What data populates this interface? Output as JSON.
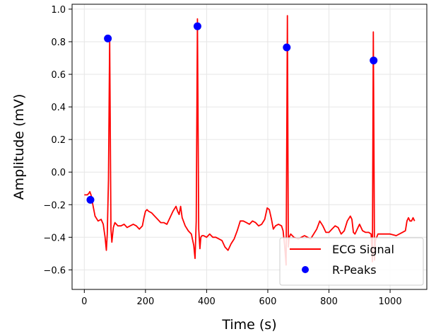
{
  "chart_data": {
    "type": "line",
    "xlabel": "Time (s)",
    "ylabel": "Amplitude (mV)",
    "xlim": [
      -40,
      1120
    ],
    "ylim": [
      -0.72,
      1.03
    ],
    "xticks": [
      0,
      200,
      400,
      600,
      800,
      1000
    ],
    "xtick_labels": [
      "0",
      "200",
      "400",
      "600",
      "800",
      "1000"
    ],
    "yticks": [
      -0.6,
      -0.4,
      -0.2,
      0.0,
      0.2,
      0.4,
      0.6,
      0.8,
      1.0
    ],
    "ytick_labels": [
      "−0.6",
      "−0.4",
      "−0.2",
      "0.0",
      "0.2",
      "0.4",
      "0.6",
      "0.8",
      "1.0"
    ],
    "grid": true,
    "legend_position": "lower-right",
    "colors": {
      "signal": "#ff0000",
      "peaks": "#0000ff"
    },
    "series": [
      {
        "name": "ECG Signal",
        "kind": "line",
        "x": [
          0,
          10,
          15,
          18,
          22,
          28,
          35,
          45,
          55,
          62,
          68,
          72,
          75,
          79,
          83,
          87,
          90,
          95,
          100,
          110,
          120,
          130,
          140,
          150,
          160,
          170,
          180,
          190,
          195,
          200,
          205,
          210,
          220,
          230,
          240,
          250,
          260,
          270,
          280,
          290,
          300,
          305,
          310,
          315,
          320,
          330,
          340,
          350,
          358,
          362,
          366,
          370,
          374,
          378,
          381,
          385,
          390,
          400,
          410,
          420,
          430,
          440,
          450,
          460,
          470,
          480,
          490,
          500,
          510,
          520,
          530,
          540,
          550,
          560,
          570,
          580,
          590,
          598,
          605,
          612,
          618,
          625,
          635,
          645,
          650,
          655,
          660,
          664,
          667,
          670,
          675,
          685,
          700,
          720,
          740,
          760,
          770,
          780,
          790,
          800,
          810,
          820,
          830,
          840,
          850,
          860,
          870,
          875,
          880,
          885,
          890,
          895,
          900,
          910,
          920,
          930,
          938,
          942,
          945,
          949,
          952,
          960,
          980,
          1000,
          1020,
          1040,
          1050,
          1055,
          1060,
          1065,
          1070,
          1075,
          1080
        ],
        "y": [
          -0.14,
          -0.14,
          -0.13,
          -0.12,
          -0.14,
          -0.2,
          -0.27,
          -0.3,
          -0.29,
          -0.32,
          -0.4,
          -0.48,
          -0.38,
          -0.05,
          0.82,
          -0.35,
          -0.43,
          -0.34,
          -0.31,
          -0.33,
          -0.33,
          -0.32,
          -0.34,
          -0.33,
          -0.32,
          -0.33,
          -0.35,
          -0.33,
          -0.28,
          -0.24,
          -0.23,
          -0.24,
          -0.25,
          -0.27,
          -0.29,
          -0.31,
          -0.31,
          -0.32,
          -0.28,
          -0.24,
          -0.21,
          -0.24,
          -0.26,
          -0.21,
          -0.28,
          -0.33,
          -0.36,
          -0.38,
          -0.45,
          -0.53,
          -0.3,
          0.94,
          -0.35,
          -0.47,
          -0.4,
          -0.39,
          -0.39,
          -0.4,
          -0.38,
          -0.4,
          -0.4,
          -0.41,
          -0.42,
          -0.46,
          -0.48,
          -0.44,
          -0.41,
          -0.36,
          -0.3,
          -0.3,
          -0.31,
          -0.32,
          -0.3,
          -0.31,
          -0.33,
          -0.32,
          -0.29,
          -0.22,
          -0.23,
          -0.29,
          -0.35,
          -0.33,
          -0.32,
          -0.33,
          -0.36,
          -0.45,
          -0.57,
          0.96,
          -0.46,
          -0.4,
          -0.38,
          -0.4,
          -0.41,
          -0.39,
          -0.41,
          -0.35,
          -0.3,
          -0.33,
          -0.37,
          -0.37,
          -0.35,
          -0.33,
          -0.34,
          -0.38,
          -0.36,
          -0.3,
          -0.27,
          -0.29,
          -0.37,
          -0.38,
          -0.36,
          -0.34,
          -0.32,
          -0.36,
          -0.37,
          -0.37,
          -0.38,
          -0.55,
          0.86,
          -0.54,
          -0.42,
          -0.38,
          -0.38,
          -0.38,
          -0.39,
          -0.37,
          -0.36,
          -0.3,
          -0.28,
          -0.3,
          -0.3,
          -0.28,
          -0.3
        ]
      },
      {
        "name": "R-Peaks",
        "kind": "scatter",
        "x": [
          20,
          77,
          370,
          662,
          946
        ],
        "y": [
          -0.17,
          0.82,
          0.895,
          0.765,
          0.685
        ]
      }
    ]
  }
}
